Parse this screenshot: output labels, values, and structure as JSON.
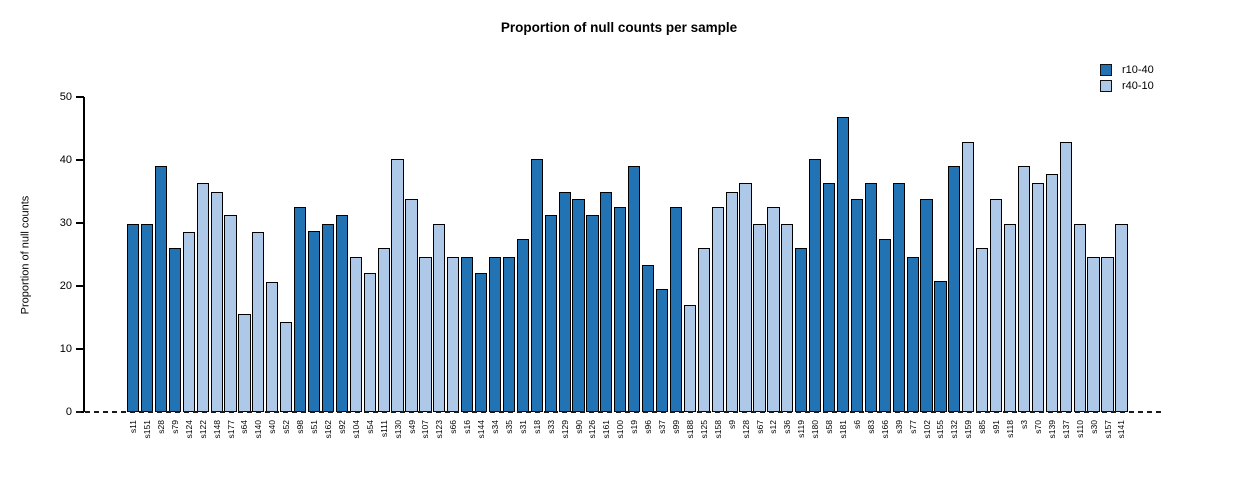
{
  "chart_data": {
    "type": "bar",
    "title": "Proportion of null counts per sample",
    "xlabel": "",
    "ylabel": "Proportion of null counts",
    "ylim": [
      0,
      50
    ],
    "yticks": [
      0,
      10,
      20,
      30,
      40,
      50
    ],
    "grid": false,
    "zero_line_style": "dashed",
    "legend_position": "top-right",
    "bar_border_color": "#000000",
    "legend": [
      {
        "label": "r10-40",
        "color": "#2173b4"
      },
      {
        "label": "r40-10",
        "color": "#aec9e8"
      }
    ],
    "samples": [
      {
        "label": "s11",
        "group": "r10-40",
        "value": 29.8
      },
      {
        "label": "s151",
        "group": "r10-40",
        "value": 29.8
      },
      {
        "label": "s28",
        "group": "r10-40",
        "value": 39.0
      },
      {
        "label": "s79",
        "group": "r10-40",
        "value": 26.0
      },
      {
        "label": "s124",
        "group": "r40-10",
        "value": 28.6
      },
      {
        "label": "s122",
        "group": "r40-10",
        "value": 36.4
      },
      {
        "label": "s148",
        "group": "r40-10",
        "value": 35.0
      },
      {
        "label": "s177",
        "group": "r40-10",
        "value": 31.2
      },
      {
        "label": "s64",
        "group": "r40-10",
        "value": 15.6
      },
      {
        "label": "s140",
        "group": "r40-10",
        "value": 28.6
      },
      {
        "label": "s40",
        "group": "r40-10",
        "value": 20.7
      },
      {
        "label": "s52",
        "group": "r40-10",
        "value": 14.3
      },
      {
        "label": "s98",
        "group": "r10-40",
        "value": 32.5
      },
      {
        "label": "s51",
        "group": "r10-40",
        "value": 28.7
      },
      {
        "label": "s162",
        "group": "r10-40",
        "value": 29.8
      },
      {
        "label": "s92",
        "group": "r10-40",
        "value": 31.2
      },
      {
        "label": "s104",
        "group": "r40-10",
        "value": 24.6
      },
      {
        "label": "s54",
        "group": "r40-10",
        "value": 22.1
      },
      {
        "label": "s111",
        "group": "r40-10",
        "value": 26.1
      },
      {
        "label": "s130",
        "group": "r40-10",
        "value": 40.2
      },
      {
        "label": "s49",
        "group": "r40-10",
        "value": 33.8
      },
      {
        "label": "s107",
        "group": "r40-10",
        "value": 24.6
      },
      {
        "label": "s123",
        "group": "r40-10",
        "value": 29.8
      },
      {
        "label": "s66",
        "group": "r40-10",
        "value": 24.6
      },
      {
        "label": "s16",
        "group": "r10-40",
        "value": 24.6
      },
      {
        "label": "s144",
        "group": "r10-40",
        "value": 22.1
      },
      {
        "label": "s34",
        "group": "r10-40",
        "value": 24.6
      },
      {
        "label": "s35",
        "group": "r10-40",
        "value": 24.6
      },
      {
        "label": "s31",
        "group": "r10-40",
        "value": 27.4
      },
      {
        "label": "s18",
        "group": "r10-40",
        "value": 40.2
      },
      {
        "label": "s33",
        "group": "r10-40",
        "value": 31.2
      },
      {
        "label": "s129",
        "group": "r10-40",
        "value": 35.0
      },
      {
        "label": "s90",
        "group": "r10-40",
        "value": 33.8
      },
      {
        "label": "s126",
        "group": "r10-40",
        "value": 31.2
      },
      {
        "label": "s161",
        "group": "r10-40",
        "value": 35.0
      },
      {
        "label": "s100",
        "group": "r10-40",
        "value": 32.5
      },
      {
        "label": "s19",
        "group": "r10-40",
        "value": 39.0
      },
      {
        "label": "s96",
        "group": "r10-40",
        "value": 23.3
      },
      {
        "label": "s37",
        "group": "r10-40",
        "value": 19.6
      },
      {
        "label": "s99",
        "group": "r10-40",
        "value": 32.5
      },
      {
        "label": "s188",
        "group": "r40-10",
        "value": 17.0
      },
      {
        "label": "s125",
        "group": "r40-10",
        "value": 26.1
      },
      {
        "label": "s158",
        "group": "r40-10",
        "value": 32.5
      },
      {
        "label": "s9",
        "group": "r40-10",
        "value": 35.0
      },
      {
        "label": "s128",
        "group": "r40-10",
        "value": 36.4
      },
      {
        "label": "s67",
        "group": "r40-10",
        "value": 29.8
      },
      {
        "label": "s12",
        "group": "r40-10",
        "value": 32.5
      },
      {
        "label": "s36",
        "group": "r40-10",
        "value": 29.8
      },
      {
        "label": "s119",
        "group": "r10-40",
        "value": 26.1
      },
      {
        "label": "s180",
        "group": "r10-40",
        "value": 40.2
      },
      {
        "label": "s58",
        "group": "r10-40",
        "value": 36.4
      },
      {
        "label": "s181",
        "group": "r10-40",
        "value": 46.9
      },
      {
        "label": "s6",
        "group": "r10-40",
        "value": 33.8
      },
      {
        "label": "s83",
        "group": "r10-40",
        "value": 36.4
      },
      {
        "label": "s166",
        "group": "r10-40",
        "value": 27.4
      },
      {
        "label": "s39",
        "group": "r10-40",
        "value": 36.4
      },
      {
        "label": "s77",
        "group": "r10-40",
        "value": 24.6
      },
      {
        "label": "s102",
        "group": "r10-40",
        "value": 33.8
      },
      {
        "label": "s155",
        "group": "r10-40",
        "value": 20.8
      },
      {
        "label": "s132",
        "group": "r10-40",
        "value": 39.0
      },
      {
        "label": "s159",
        "group": "r40-10",
        "value": 42.9
      },
      {
        "label": "s85",
        "group": "r40-10",
        "value": 26.1
      },
      {
        "label": "s91",
        "group": "r40-10",
        "value": 33.8
      },
      {
        "label": "s118",
        "group": "r40-10",
        "value": 29.8
      },
      {
        "label": "s3",
        "group": "r40-10",
        "value": 39.0
      },
      {
        "label": "s70",
        "group": "r40-10",
        "value": 36.4
      },
      {
        "label": "s139",
        "group": "r40-10",
        "value": 37.8
      },
      {
        "label": "s137",
        "group": "r40-10",
        "value": 42.9
      },
      {
        "label": "s110",
        "group": "r40-10",
        "value": 29.8
      },
      {
        "label": "s30",
        "group": "r40-10",
        "value": 24.6
      },
      {
        "label": "s157",
        "group": "r40-10",
        "value": 24.6
      },
      {
        "label": "s141",
        "group": "r40-10",
        "value": 29.8
      }
    ]
  }
}
